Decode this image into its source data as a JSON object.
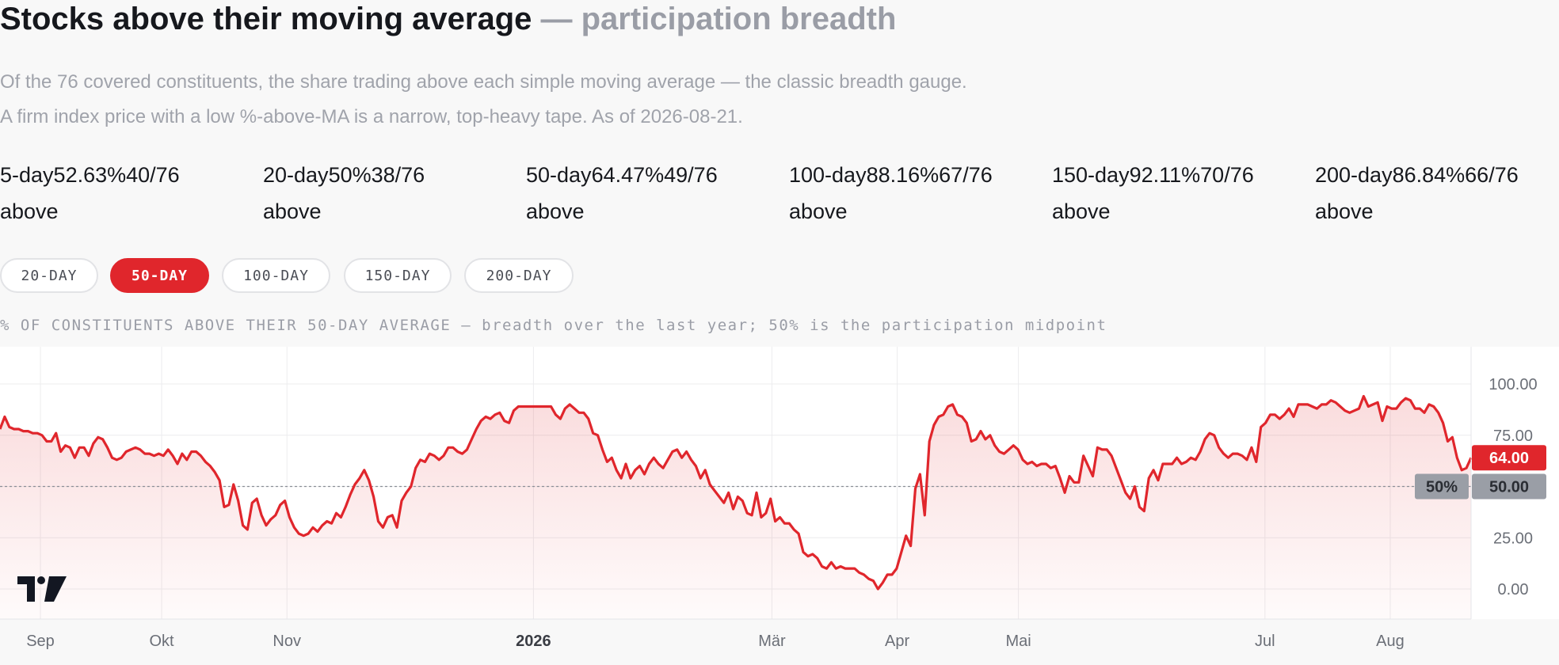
{
  "header": {
    "title_main": "Stocks above their moving average",
    "title_sub": "— participation breadth",
    "description": "Of the 76 covered constituents, the share trading above each simple moving average — the classic breadth gauge. A firm index price with a low %-above-MA is a narrow, top-heavy tape. As of 2026-08-21."
  },
  "stats": [
    {
      "period": "5-day",
      "pct": "52.63%",
      "count": "40/76",
      "label": "above"
    },
    {
      "period": "20-day",
      "pct": "50%",
      "count": "38/76",
      "label": "above"
    },
    {
      "period": "50-day",
      "pct": "64.47%",
      "count": "49/76",
      "label": "above"
    },
    {
      "period": "100-day",
      "pct": "88.16%",
      "count": "67/76",
      "label": "above"
    },
    {
      "period": "150-day",
      "pct": "92.11%",
      "count": "70/76",
      "label": "above"
    },
    {
      "period": "200-day",
      "pct": "86.84%",
      "count": "66/76",
      "label": "above"
    }
  ],
  "tabs": [
    {
      "label": "20-DAY",
      "active": false
    },
    {
      "label": "50-DAY",
      "active": true
    },
    {
      "label": "100-DAY",
      "active": false
    },
    {
      "label": "150-DAY",
      "active": false
    },
    {
      "label": "200-DAY",
      "active": false
    }
  ],
  "caption": "% OF CONSTITUENTS ABOVE THEIR 50-DAY AVERAGE — breadth over the last year; 50% is the participation midpoint",
  "colors": {
    "accent": "#e0262c",
    "midline": "#8b8f97",
    "grid": "#ececee"
  },
  "chart_data": {
    "type": "area",
    "ylim": [
      0,
      100
    ],
    "yticks": [
      "100.00",
      "75.00",
      "50.00",
      "25.00",
      "0.00"
    ],
    "xticks": [
      "Sep",
      "Okt",
      "Nov",
      "2026",
      "Mär",
      "Apr",
      "Mai",
      "Jul",
      "Aug"
    ],
    "reference_line": {
      "value": 50,
      "label": "50%",
      "price_label": "50.00"
    },
    "last_value_label": "64.00",
    "grid": true,
    "x_start": "2025-08-22",
    "x_end": "2026-08-21",
    "series": [
      {
        "color": "#e0262c",
        "values": [
          78,
          84,
          79,
          78,
          78,
          77,
          77,
          76,
          76,
          75,
          72,
          72,
          76,
          67,
          70,
          69,
          64,
          69,
          69,
          65,
          71,
          74,
          73,
          69,
          64,
          63,
          64,
          67,
          68,
          69,
          68,
          66,
          66,
          65,
          66,
          65,
          68,
          65,
          61,
          66,
          63,
          67,
          67,
          65,
          62,
          60,
          57,
          53,
          40,
          41,
          51,
          43,
          31,
          29,
          42,
          44,
          36,
          31,
          34,
          36,
          41,
          43,
          35,
          30,
          27,
          26,
          27,
          30,
          28,
          31,
          33,
          32,
          37,
          35,
          40,
          46,
          51,
          54,
          58,
          53,
          45,
          33,
          30,
          35,
          36,
          30,
          43,
          47,
          50,
          59,
          63,
          62,
          66,
          65,
          63,
          65,
          69,
          69,
          67,
          66,
          68,
          73,
          78,
          82,
          84,
          83,
          85,
          86,
          82,
          81,
          87,
          89,
          89,
          89,
          89,
          89,
          89,
          89,
          89,
          85,
          83,
          88,
          90,
          88,
          86,
          86,
          83,
          76,
          75,
          68,
          62,
          64,
          58,
          54,
          61,
          54,
          58,
          60,
          56,
          61,
          64,
          61,
          59,
          63,
          67,
          68,
          64,
          67,
          63,
          60,
          54,
          58,
          51,
          48,
          45,
          42,
          47,
          39,
          45,
          43,
          37,
          36,
          47,
          35,
          37,
          44,
          33,
          35,
          32,
          32,
          29,
          27,
          18,
          16,
          17,
          15,
          11,
          10,
          13,
          10,
          11,
          10,
          10,
          10,
          8,
          7,
          5,
          4,
          0,
          3,
          7,
          7,
          10,
          18,
          26,
          21,
          49,
          56,
          36,
          72,
          80,
          84,
          85,
          89,
          90,
          85,
          84,
          81,
          72,
          73,
          77,
          73,
          75,
          70,
          67,
          66,
          68,
          70,
          68,
          63,
          61,
          62,
          60,
          61,
          61,
          59,
          60,
          54,
          47,
          55,
          52,
          52,
          65,
          60,
          55,
          69,
          68,
          68,
          65,
          59,
          53,
          47,
          44,
          50,
          40,
          38,
          54,
          58,
          53,
          61,
          61,
          61,
          64,
          61,
          62,
          64,
          63,
          67,
          73,
          76,
          75,
          69,
          66,
          64,
          66,
          66,
          65,
          63,
          69,
          62,
          79,
          81,
          85,
          85,
          83,
          85,
          88,
          84,
          90,
          90,
          90,
          89,
          88,
          90,
          90,
          92,
          91,
          89,
          87,
          86,
          87,
          88,
          94,
          89,
          90,
          91,
          82,
          89,
          88,
          88,
          91,
          93,
          92,
          88,
          88,
          86,
          90,
          89,
          86,
          81,
          72,
          74,
          64,
          58,
          59,
          64
        ]
      }
    ]
  }
}
